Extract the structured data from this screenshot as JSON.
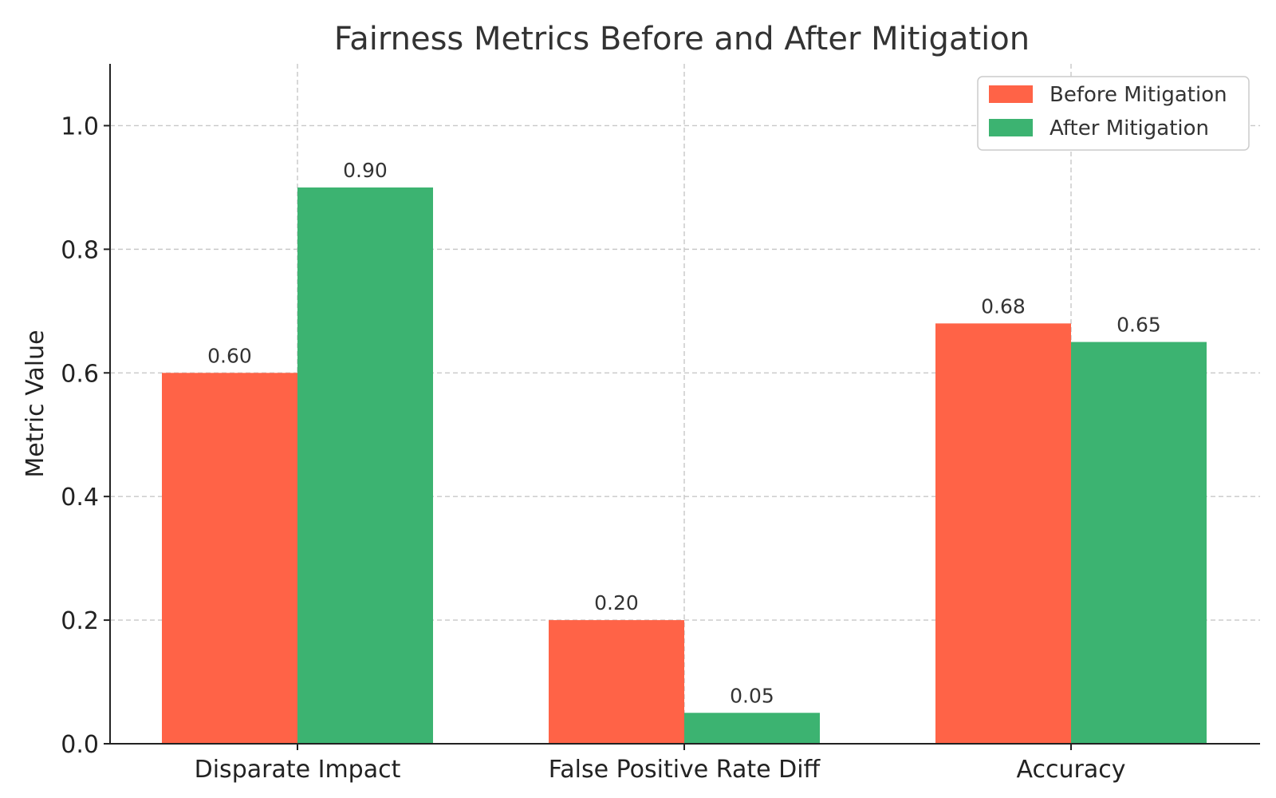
{
  "chart_data": {
    "type": "bar",
    "title": "Fairness Metrics Before and After Mitigation",
    "xlabel": "",
    "ylabel": "Metric Value",
    "categories": [
      "Disparate Impact",
      "False Positive Rate Diff",
      "Accuracy"
    ],
    "series": [
      {
        "name": "Before Mitigation",
        "color": "#ff6347",
        "values": [
          0.6,
          0.2,
          0.68
        ],
        "labels": [
          "0.60",
          "0.20",
          "0.68"
        ]
      },
      {
        "name": "After Mitigation",
        "color": "#3cb371",
        "values": [
          0.9,
          0.05,
          0.65
        ],
        "labels": [
          "0.90",
          "0.05",
          "0.65"
        ]
      }
    ],
    "ylim": [
      0,
      1.1
    ],
    "yticks": [
      0.0,
      0.2,
      0.4,
      0.6,
      0.8,
      1.0
    ],
    "ytick_labels": [
      "0.0",
      "0.2",
      "0.4",
      "0.6",
      "0.8",
      "1.0"
    ],
    "grid": true,
    "legend_position": "top-right"
  }
}
